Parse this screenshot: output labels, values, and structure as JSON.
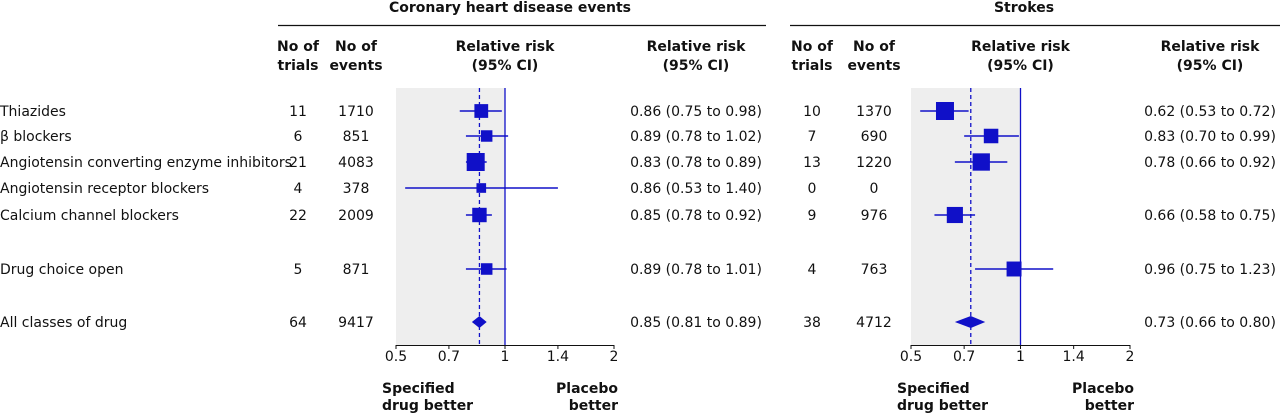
{
  "chart_data": {
    "type": "forest",
    "row_labels": [
      "Thiazides",
      "β blockers",
      "Angiotensin converting enzyme inhibitors",
      "Angiotensin receptor blockers",
      "Calcium channel blockers",
      "Drug choice open",
      "All classes of drug"
    ],
    "column_headers": {
      "trials": [
        "No of",
        "trials"
      ],
      "events": [
        "No of",
        "events"
      ],
      "rr_plot": [
        "Relative risk",
        "(95% CI)"
      ],
      "rr_text": [
        "Relative risk",
        "(95% CI)"
      ]
    },
    "x_scale": "log",
    "x_ticks": [
      "0.5",
      "0.7",
      "1",
      "1.4",
      "2"
    ],
    "reference_line": 1,
    "footer_left": [
      "Specified",
      "drug better"
    ],
    "footer_right": [
      "Placebo",
      "better"
    ],
    "colors": {
      "marker": "#1010c8",
      "panel_bg": "#eeeeee",
      "rule": "#111111"
    },
    "panels": [
      {
        "title": "Coronary heart disease events",
        "pooled_line": 0.85,
        "rows": [
          {
            "trials": "11",
            "events": "1710",
            "rr": 0.86,
            "lo": 0.75,
            "hi": 0.98,
            "text": "0.86 (0.75 to 0.98)"
          },
          {
            "trials": "6",
            "events": "851",
            "rr": 0.89,
            "lo": 0.78,
            "hi": 1.02,
            "text": "0.89 (0.78 to 1.02)"
          },
          {
            "trials": "21",
            "events": "4083",
            "rr": 0.83,
            "lo": 0.78,
            "hi": 0.89,
            "text": "0.83 (0.78 to 0.89)"
          },
          {
            "trials": "4",
            "events": "378",
            "rr": 0.86,
            "lo": 0.53,
            "hi": 1.4,
            "text": "0.86 (0.53 to 1.40)"
          },
          {
            "trials": "22",
            "events": "2009",
            "rr": 0.85,
            "lo": 0.78,
            "hi": 0.92,
            "text": "0.85 (0.78 to 0.92)"
          },
          {
            "trials": "5",
            "events": "871",
            "rr": 0.89,
            "lo": 0.78,
            "hi": 1.01,
            "text": "0.89 (0.78 to 1.01)"
          },
          {
            "trials": "64",
            "events": "9417",
            "rr": 0.85,
            "lo": 0.81,
            "hi": 0.89,
            "text": "0.85 (0.81 to 0.89)",
            "summary": true
          }
        ]
      },
      {
        "title": "Strokes",
        "pooled_line": 0.73,
        "rows": [
          {
            "trials": "10",
            "events": "1370",
            "rr": 0.62,
            "lo": 0.53,
            "hi": 0.72,
            "text": "0.62 (0.53 to 0.72)"
          },
          {
            "trials": "7",
            "events": "690",
            "rr": 0.83,
            "lo": 0.7,
            "hi": 0.99,
            "text": "0.83 (0.70 to 0.99)"
          },
          {
            "trials": "13",
            "events": "1220",
            "rr": 0.78,
            "lo": 0.66,
            "hi": 0.92,
            "text": "0.78 (0.66 to 0.92)"
          },
          {
            "trials": "0",
            "events": "0",
            "rr": null,
            "lo": null,
            "hi": null,
            "text": ""
          },
          {
            "trials": "9",
            "events": "976",
            "rr": 0.66,
            "lo": 0.58,
            "hi": 0.75,
            "text": "0.66 (0.58 to 0.75)"
          },
          {
            "trials": "4",
            "events": "763",
            "rr": 0.96,
            "lo": 0.75,
            "hi": 1.23,
            "text": "0.96 (0.75 to 1.23)"
          },
          {
            "trials": "38",
            "events": "4712",
            "rr": 0.73,
            "lo": 0.66,
            "hi": 0.8,
            "text": "0.73 (0.66 to 0.80)",
            "summary": true
          }
        ]
      }
    ]
  }
}
